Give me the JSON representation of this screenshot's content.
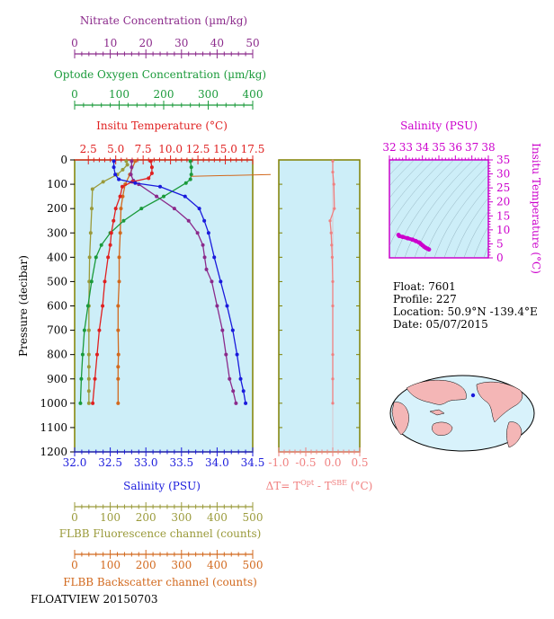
{
  "colors": {
    "nitrate": "#8b2a8b",
    "oxygen": "#1a9a3a",
    "temperature": "#e02020",
    "salinity": "#1a1adc",
    "fluorescence": "#9a9a3a",
    "backscatter": "#d2691e",
    "delta_t": "#f08080",
    "ts_axis": "#cc00cc",
    "plot_bg": "#cdeef8",
    "frame": "#808000"
  },
  "axes": {
    "nitrate_title": "Nitrate Concentration (µm/kg)",
    "oxygen_title": "Optode Oxygen Concentration (µm/kg)",
    "temperature_title": "Insitu Temperature (°C)",
    "salinity_title": "Salinity (PSU)",
    "pressure_title": "Pressure (decibar)",
    "fluorescence_title": "FLBB Fluorescence channel (counts)",
    "backscatter_title": "FLBB Backscatter channel (counts)",
    "delta_t_title": "ΔT= T",
    "delta_t_sup1": "Opt",
    "delta_t_mid": " - T",
    "delta_t_sup2": "SBE",
    "delta_t_unit": " (°C)",
    "ts_salinity_title": "Salinity (PSU)",
    "ts_temperature_title": "Insitu Temperature (°C)"
  },
  "float_info": {
    "float": "Float:  7601",
    "profile": "Profile:  227",
    "location": "Location:  50.9°N  -139.4°E",
    "date": "Date:  05/07/2015"
  },
  "footer_code": "FLOATVIEW 20150703",
  "chart_data": [
    {
      "type": "line",
      "name": "profile-panel",
      "pressure_ticks": [
        0,
        100,
        200,
        300,
        400,
        500,
        600,
        700,
        800,
        900,
        1000,
        1100,
        1200
      ],
      "ylim": [
        0,
        1200
      ],
      "nitrate_ticks": [
        0,
        10,
        20,
        30,
        40,
        50
      ],
      "oxygen_ticks": [
        0,
        100,
        200,
        300,
        400
      ],
      "temperature_ticks": [
        "2.5",
        "5.0",
        "7.5",
        "10.0",
        "12.5",
        "15.0",
        "17.5"
      ],
      "salinity_ticks": [
        "32.0",
        "32.5",
        "33.0",
        "33.5",
        "34.0",
        "34.5"
      ],
      "fluorescence_ticks": [
        0,
        100,
        200,
        300,
        400,
        500
      ],
      "backscatter_ticks": [
        0,
        100,
        200,
        300,
        400,
        500
      ],
      "nitrate": {
        "x": [
          16.0,
          16.0,
          15.8,
          16.5,
          18,
          23,
          28,
          32,
          34.5,
          36,
          36.5,
          37,
          38.5,
          40,
          41.5,
          42.5,
          43.5,
          44.5,
          45.3
        ],
        "p": [
          5,
          30,
          60,
          85,
          100,
          150,
          200,
          250,
          300,
          350,
          400,
          450,
          500,
          600,
          700,
          800,
          900,
          950,
          1000
        ]
      },
      "oxygen": {
        "x": [
          260,
          262,
          262,
          260,
          250,
          200,
          150,
          110,
          80,
          60,
          48,
          38,
          30,
          22,
          18,
          15,
          13
        ],
        "p": [
          5,
          30,
          60,
          80,
          95,
          150,
          200,
          250,
          300,
          350,
          400,
          500,
          600,
          700,
          800,
          900,
          1000
        ]
      },
      "temperature": {
        "x": [
          8.2,
          8.3,
          8.3,
          8.0,
          6.5,
          5.6,
          5.4,
          5.0,
          4.8,
          4.6,
          4.5,
          4.3,
          4.0,
          3.8,
          3.5,
          3.3,
          3.1,
          2.9
        ],
        "p": [
          5,
          30,
          55,
          75,
          90,
          110,
          150,
          200,
          250,
          300,
          350,
          400,
          500,
          600,
          700,
          800,
          900,
          1000
        ]
      },
      "salinity": {
        "x": [
          32.55,
          32.55,
          32.57,
          32.62,
          32.85,
          33.2,
          33.55,
          33.75,
          33.82,
          33.88,
          33.96,
          34.05,
          34.14,
          34.22,
          34.28,
          34.33,
          34.37,
          34.4
        ],
        "p": [
          5,
          30,
          60,
          80,
          95,
          110,
          150,
          200,
          250,
          300,
          400,
          500,
          600,
          700,
          800,
          900,
          950,
          1000
        ]
      },
      "fluorescence": {
        "x": [
          145,
          148,
          135,
          120,
          80,
          50,
          48,
          45,
          42,
          41,
          40,
          40,
          40,
          40,
          40,
          40,
          40
        ],
        "p": [
          5,
          20,
          40,
          60,
          90,
          120,
          200,
          300,
          400,
          500,
          600,
          700,
          800,
          850,
          900,
          950,
          1000
        ]
      },
      "backscatter": {
        "x": [
          170,
          155,
          142,
          135,
          130,
          128,
          125,
          125,
          122,
          122,
          123,
          122,
          122,
          122
        ],
        "p": [
          5,
          60,
          100,
          150,
          200,
          300,
          400,
          500,
          600,
          700,
          800,
          850,
          900,
          1000
        ]
      },
      "bias_line": {
        "oxygen": [
          262,
          400
        ],
        "p": [
          60,
          60
        ]
      }
    },
    {
      "type": "line",
      "name": "delta-t-panel",
      "xlim": [
        -1.0,
        0.5
      ],
      "x_ticks": [
        "-1.0",
        "-0.5",
        "0.0",
        "0.5"
      ],
      "delta_t": {
        "x": [
          0.0,
          0.0,
          0.02,
          0.03,
          -0.05,
          -0.03,
          -0.02,
          -0.01,
          0.0,
          0.0,
          0.0,
          0.0,
          0.0
        ],
        "p": [
          5,
          50,
          100,
          200,
          250,
          300,
          350,
          400,
          500,
          600,
          800,
          900,
          1000
        ]
      }
    },
    {
      "type": "scatter",
      "name": "ts-panel",
      "salinity_ticks": [
        32,
        33,
        34,
        35,
        36,
        37,
        38
      ],
      "temperature_ticks": [
        0,
        5,
        10,
        15,
        20,
        25,
        30,
        35
      ],
      "points": {
        "s": [
          32.55,
          32.6,
          32.8,
          33.1,
          33.4,
          33.6,
          33.8,
          33.9,
          34.0,
          34.1,
          34.2,
          34.3,
          34.4
        ],
        "t": [
          8.2,
          7.8,
          7.5,
          7.0,
          6.5,
          6.0,
          5.5,
          5.0,
          4.5,
          4.0,
          3.6,
          3.3,
          3.0
        ]
      }
    }
  ]
}
